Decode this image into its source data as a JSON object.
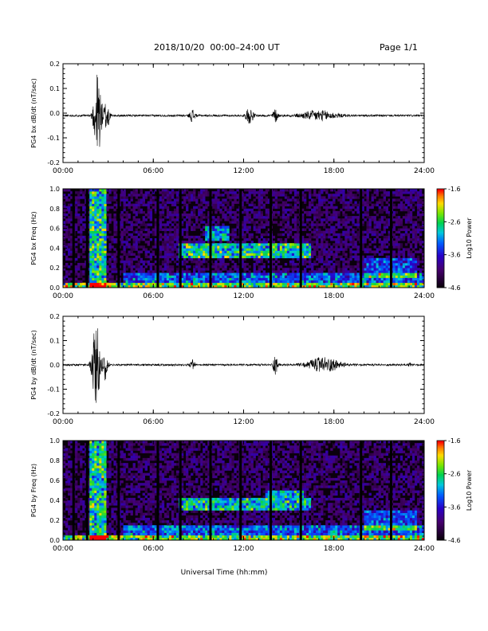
{
  "header": {
    "title": "2018/10/20  00:00–24:00 UT",
    "page": "Page 1/1"
  },
  "xlabel": "Universal Time (hh:mm)",
  "colors": {
    "trace": "#000000",
    "background": "#ffffff"
  },
  "chart_data": [
    {
      "type": "line",
      "name": "bx-waveform",
      "ylabel": "PG4 bx dB/dt (nT/sec)",
      "xlim": [
        0,
        24
      ],
      "ylim": [
        -0.2,
        0.2
      ],
      "xticks": [
        "00:00",
        "06:00",
        "12:00",
        "18:00",
        "24:00"
      ],
      "yticks": [
        "-0.2",
        "-0.1",
        "0.0",
        "0.1",
        "0.2"
      ],
      "baseline": -0.01,
      "noise": 0.004,
      "bursts": [
        {
          "center_hr": 2.3,
          "width_hr": 0.35,
          "amplitude": 0.19
        },
        {
          "center_hr": 2.9,
          "width_hr": 0.25,
          "amplitude": 0.07
        },
        {
          "center_hr": 8.6,
          "width_hr": 0.25,
          "amplitude": 0.025
        },
        {
          "center_hr": 12.4,
          "width_hr": 0.35,
          "amplitude": 0.03
        },
        {
          "center_hr": 14.1,
          "width_hr": 0.25,
          "amplitude": 0.025
        },
        {
          "center_hr": 17.0,
          "width_hr": 1.6,
          "amplitude": 0.02
        }
      ]
    },
    {
      "type": "heatmap",
      "name": "bx-spectrogram",
      "ylabel": "PG4 bx Freq (Hz)",
      "colorbar_label": "Log10 Power",
      "colorbar_ticks": [
        "-1.6",
        "-2.6",
        "-3.6",
        "-4.6"
      ],
      "zlim": [
        -4.6,
        -1.6
      ],
      "xlim": [
        0,
        24
      ],
      "ylim": [
        0.0,
        1.0
      ],
      "xticks": [
        "00:00",
        "06:00",
        "12:00",
        "18:00",
        "24:00"
      ],
      "yticks": [
        "0.0",
        "0.2",
        "0.4",
        "0.6",
        "0.8",
        "1.0"
      ],
      "gaps_hr": [
        0.7,
        1.6,
        3.7,
        6.3,
        7.8,
        9.8,
        11.8,
        13.8,
        15.8,
        19.8,
        21.8
      ],
      "bands": [
        {
          "t0": 1.8,
          "t1": 2.9,
          "f0": 0.0,
          "f1": 1.0,
          "level": 0.55
        },
        {
          "t0": 7.7,
          "t1": 16.5,
          "f0": 0.3,
          "f1": 0.45,
          "level": 0.55
        },
        {
          "t0": 9.5,
          "t1": 11.0,
          "f0": 0.48,
          "f1": 0.62,
          "level": 0.45
        },
        {
          "t0": 0.0,
          "t1": 24.0,
          "f0": 0.0,
          "f1": 0.04,
          "level": 0.7
        },
        {
          "t0": 4.0,
          "t1": 24.0,
          "f0": 0.05,
          "f1": 0.15,
          "level": 0.35
        },
        {
          "t0": 20.0,
          "t1": 23.5,
          "f0": 0.1,
          "f1": 0.3,
          "level": 0.3
        }
      ]
    },
    {
      "type": "line",
      "name": "by-waveform",
      "ylabel": "PG4 by dB/dt (nT/sec)",
      "xlim": [
        0,
        24
      ],
      "ylim": [
        -0.2,
        0.2
      ],
      "xticks": [
        "00:00",
        "06:00",
        "12:00",
        "18:00",
        "24:00"
      ],
      "yticks": [
        "-0.2",
        "-0.1",
        "0.0",
        "0.1",
        "0.2"
      ],
      "baseline": 0.0,
      "noise": 0.004,
      "bursts": [
        {
          "center_hr": 2.2,
          "width_hr": 0.35,
          "amplitude": 0.19
        },
        {
          "center_hr": 2.8,
          "width_hr": 0.25,
          "amplitude": 0.06
        },
        {
          "center_hr": 8.6,
          "width_hr": 0.2,
          "amplitude": 0.02
        },
        {
          "center_hr": 14.1,
          "width_hr": 0.2,
          "amplitude": 0.04
        },
        {
          "center_hr": 17.3,
          "width_hr": 1.5,
          "amplitude": 0.03
        },
        {
          "center_hr": 23.0,
          "width_hr": 0.1,
          "amplitude": 0.015
        }
      ]
    },
    {
      "type": "heatmap",
      "name": "by-spectrogram",
      "ylabel": "PG4 by Freq (Hz)",
      "colorbar_label": "Log10 Power",
      "colorbar_ticks": [
        "-1.6",
        "-2.6",
        "-3.6",
        "-4.6"
      ],
      "zlim": [
        -4.6,
        -1.6
      ],
      "xlim": [
        0,
        24
      ],
      "ylim": [
        0.0,
        1.0
      ],
      "xticks": [
        "00:00",
        "06:00",
        "12:00",
        "18:00",
        "24:00"
      ],
      "yticks": [
        "0.0",
        "0.2",
        "0.4",
        "0.6",
        "0.8",
        "1.0"
      ],
      "gaps_hr": [
        0.7,
        1.6,
        3.7,
        6.3,
        7.8,
        9.8,
        11.8,
        13.8,
        15.8,
        19.8,
        21.8
      ],
      "bands": [
        {
          "t0": 1.8,
          "t1": 2.9,
          "f0": 0.0,
          "f1": 1.0,
          "level": 0.55
        },
        {
          "t0": 7.7,
          "t1": 16.5,
          "f0": 0.3,
          "f1": 0.42,
          "level": 0.5
        },
        {
          "t0": 13.5,
          "t1": 16.0,
          "f0": 0.42,
          "f1": 0.5,
          "level": 0.45
        },
        {
          "t0": 0.0,
          "t1": 24.0,
          "f0": 0.0,
          "f1": 0.04,
          "level": 0.7
        },
        {
          "t0": 4.0,
          "t1": 24.0,
          "f0": 0.05,
          "f1": 0.15,
          "level": 0.35
        },
        {
          "t0": 20.0,
          "t1": 23.5,
          "f0": 0.1,
          "f1": 0.3,
          "level": 0.3
        }
      ]
    }
  ]
}
